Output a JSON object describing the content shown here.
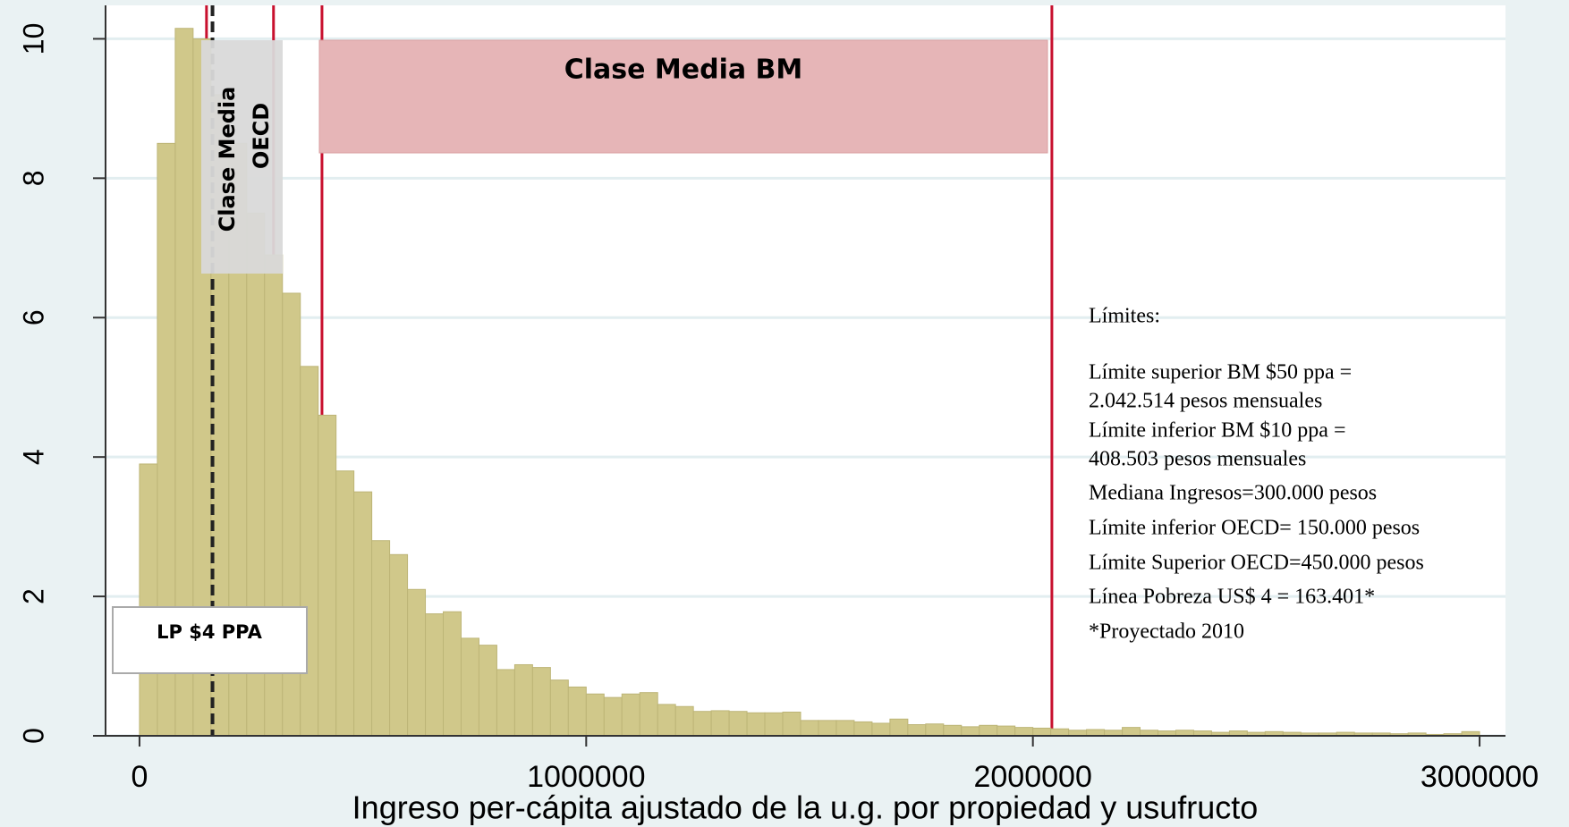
{
  "chart_data": {
    "type": "histogram",
    "xlabel": "Ingreso per-cápita ajustado de la u.g. por propiedad y usufructo",
    "bins": [
      0,
      40000,
      80000,
      120000,
      160000,
      200000,
      240000,
      280000,
      320000,
      360000,
      400000,
      440000,
      480000,
      520000,
      560000,
      600000,
      640000,
      680000,
      720000,
      760000,
      800000,
      840000,
      880000,
      920000,
      960000,
      1000000,
      1040000,
      1080000,
      1120000,
      1160000,
      1200000,
      1240000,
      1280000,
      1320000,
      1360000,
      1400000,
      1440000,
      1480000,
      1520000,
      1560000,
      1600000,
      1640000,
      1680000,
      1720000,
      1760000,
      1800000,
      1840000,
      1880000,
      1920000,
      1960000,
      2000000,
      2040000,
      2080000,
      2120000,
      2160000,
      2200000,
      2240000,
      2280000,
      2320000,
      2360000,
      2400000,
      2440000,
      2480000,
      2520000,
      2560000,
      2600000,
      2640000,
      2680000,
      2720000,
      2760000,
      2800000,
      2840000,
      2880000,
      2920000,
      2960000,
      3000000
    ],
    "values": [
      3.9,
      8.5,
      10.15,
      10.0,
      9.2,
      8.5,
      7.5,
      6.9,
      6.35,
      5.3,
      4.6,
      3.8,
      3.5,
      2.8,
      2.6,
      2.1,
      1.75,
      1.78,
      1.4,
      1.3,
      0.95,
      1.02,
      0.98,
      0.8,
      0.7,
      0.6,
      0.55,
      0.6,
      0.62,
      0.45,
      0.42,
      0.35,
      0.36,
      0.35,
      0.33,
      0.33,
      0.34,
      0.22,
      0.22,
      0.22,
      0.2,
      0.18,
      0.24,
      0.16,
      0.17,
      0.15,
      0.13,
      0.15,
      0.14,
      0.12,
      0.11,
      0.1,
      0.08,
      0.09,
      0.08,
      0.12,
      0.08,
      0.07,
      0.08,
      0.07,
      0.05,
      0.07,
      0.05,
      0.06,
      0.05,
      0.04,
      0.04,
      0.05,
      0.04,
      0.04,
      0.03,
      0.04,
      0.02,
      0.03,
      0.06
    ],
    "color": "#d0c88a",
    "xlim": [
      -76000,
      3058000
    ],
    "ylim": [
      0,
      10.48
    ],
    "xticks": [
      0,
      1000000,
      2000000,
      3000000
    ],
    "yticks": [
      0,
      2,
      4,
      6,
      8,
      10
    ],
    "grid": true,
    "reference_lines": [
      {
        "value": 150000,
        "color": "#c8102e"
      },
      {
        "value": 300000,
        "color": "#c8102e"
      },
      {
        "value": 408503,
        "color": "#c8102e"
      },
      {
        "value": 2042514,
        "color": "#c8102e"
      },
      {
        "value": 163401,
        "color": "#222222",
        "dashed": true
      }
    ],
    "box_labels": {
      "oecd": [
        "Clase Media",
        "OECD"
      ],
      "bm": "Clase Media BM",
      "lp": "LP $4 PPA"
    },
    "notes": [
      "Límites:",
      "Límite superior BM $50 ppa =",
      "2.042.514 pesos mensuales",
      "Límite inferior BM $10 ppa  =",
      "408.503 pesos mensuales",
      "Mediana Ingresos=300.000 pesos",
      "Límite inferior OECD= 150.000 pesos",
      "Límite Superior OECD=450.000 pesos",
      "Línea Pobreza US$ 4 = 163.401*",
      "*Proyectado 2010"
    ]
  }
}
